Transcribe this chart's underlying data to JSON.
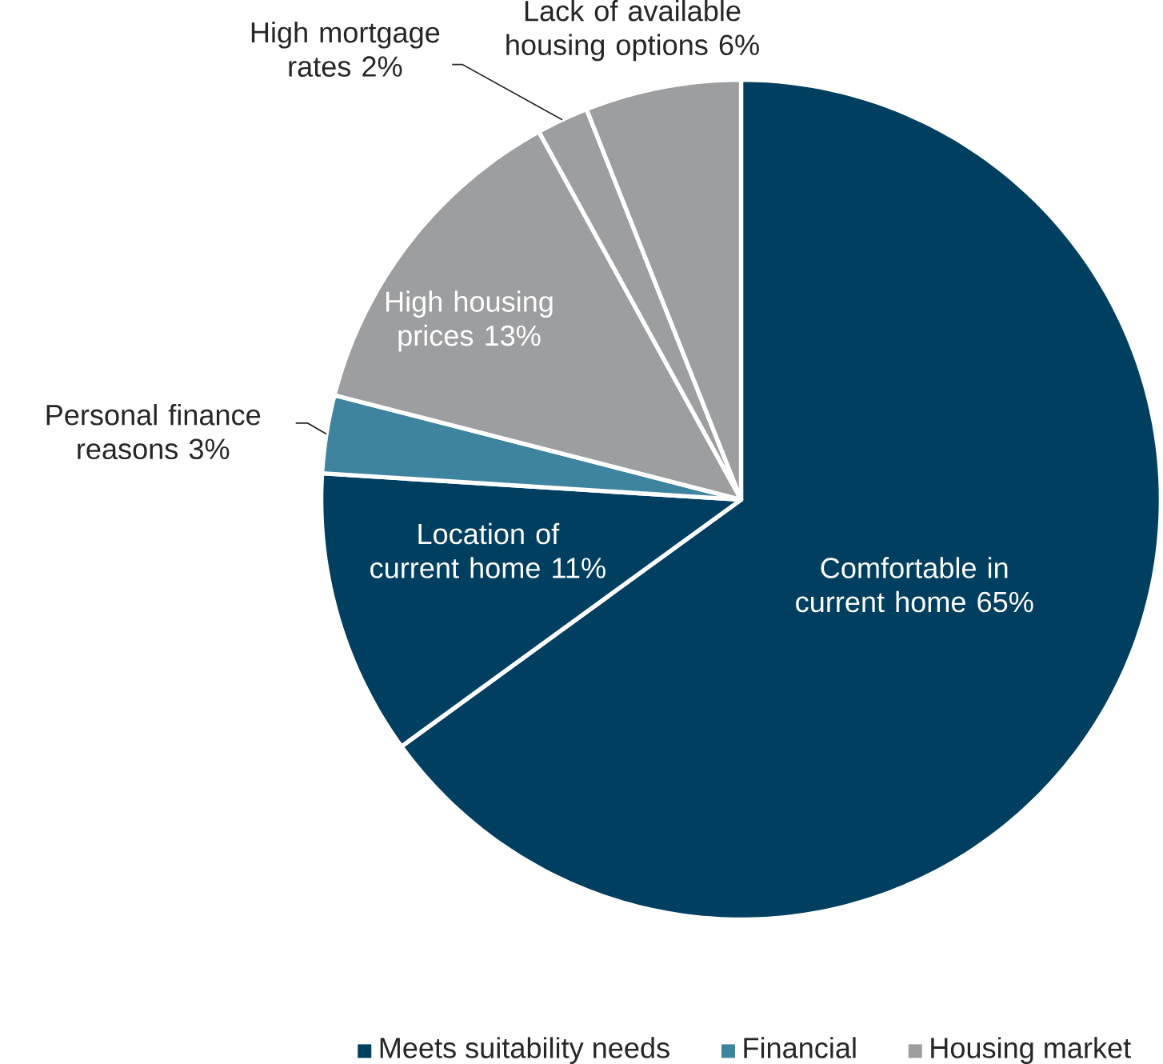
{
  "chart_data": {
    "type": "pie",
    "categories": [
      "Comfortable in current home",
      "Location of current home",
      "Personal finance reasons",
      "High housing prices",
      "High mortgage rates",
      "Lack of available housing options"
    ],
    "values": [
      65,
      11,
      3,
      13,
      2,
      6
    ],
    "colors": [
      "#003f5f",
      "#003f5f",
      "#3e849e",
      "#9d9ea0",
      "#9d9ea0",
      "#9d9ea0"
    ],
    "value_labels": [
      "65%",
      "11%",
      "3%",
      "13%",
      "2%",
      "6%"
    ],
    "annotations": [
      "Meets suitability needs",
      "Financial",
      "Housing market"
    ]
  }
}
